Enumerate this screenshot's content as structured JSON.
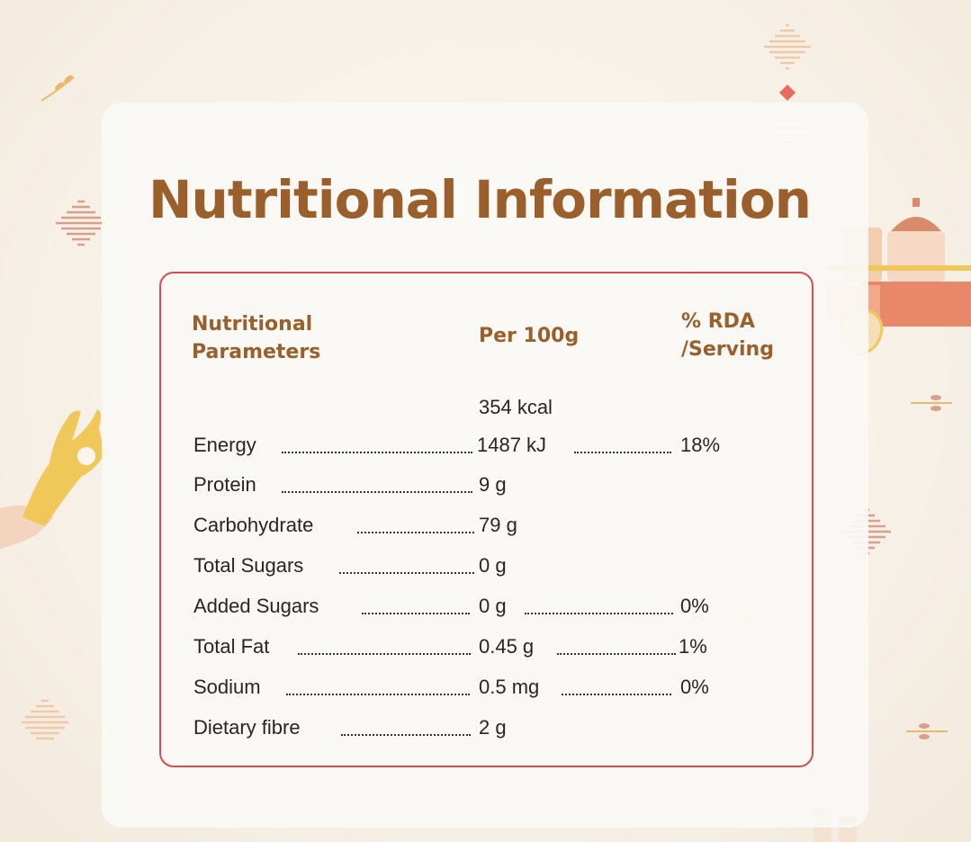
{
  "title": "Nutritional Information",
  "headers": {
    "param_line1": "Nutritional",
    "param_line2": "Parameters",
    "per100": "Per 100g",
    "rda_line1": "% RDA",
    "rda_line2": "/Serving"
  },
  "energy_kcal": "354 kcal",
  "rows": [
    {
      "name": "Energy",
      "value": "1487 kJ",
      "rda": "18%"
    },
    {
      "name": "Protein",
      "value": "9 g",
      "rda": ""
    },
    {
      "name": "Carbohydrate",
      "value": "79 g",
      "rda": ""
    },
    {
      "name": "Total Sugars",
      "value": "0 g",
      "rda": ""
    },
    {
      "name": "Added Sugars",
      "value": "0 g",
      "rda": "0%"
    },
    {
      "name": "Total Fat",
      "value": "0.45 g",
      "rda": "1%"
    },
    {
      "name": "Sodium",
      "value": "0.5 mg",
      "rda": "0%"
    },
    {
      "name": "Dietary fibre",
      "value": "2 g",
      "rda": ""
    }
  ],
  "colors": {
    "title": "#9a5f2a",
    "border": "#d94c4f",
    "text": "#2b2420",
    "background": "#f6efe5"
  }
}
